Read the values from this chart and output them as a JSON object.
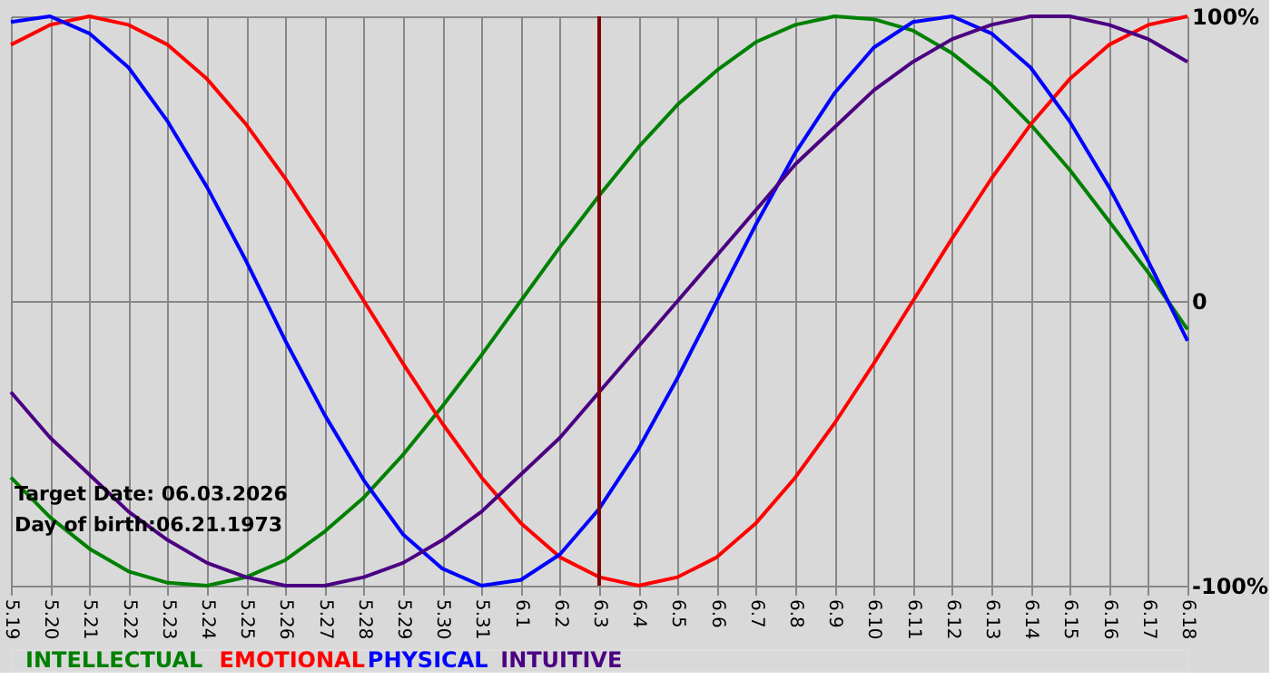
{
  "chart_data": {
    "type": "line",
    "categories": [
      "5.19",
      "5.20",
      "5.21",
      "5.22",
      "5.23",
      "5.24",
      "5.25",
      "5.26",
      "5.27",
      "5.28",
      "5.29",
      "5.30",
      "5.31",
      "6.1",
      "6.2",
      "6.3",
      "6.4",
      "6.5",
      "6.6",
      "6.7",
      "6.8",
      "6.9",
      "6.10",
      "6.11",
      "6.12",
      "6.13",
      "6.14",
      "6.15",
      "6.16",
      "6.17",
      "6.18"
    ],
    "series": [
      {
        "name": "INTELLECTUAL",
        "color": "#008000",
        "values": [
          -62,
          -76,
          -87,
          -95,
          -99,
          -100,
          -97,
          -91,
          -81,
          -69,
          -54,
          -37,
          -19,
          0,
          19,
          37,
          54,
          69,
          81,
          91,
          97,
          100,
          99,
          95,
          87,
          76,
          62,
          46,
          28,
          10,
          -10
        ]
      },
      {
        "name": "EMOTIONAL",
        "color": "#ff0000",
        "values": [
          90,
          97,
          100,
          97,
          90,
          78,
          62,
          43,
          22,
          0,
          -22,
          -43,
          -62,
          -78,
          -90,
          -97,
          -100,
          -97,
          -90,
          -78,
          -62,
          -43,
          -22,
          0,
          22,
          43,
          62,
          78,
          90,
          97,
          100
        ]
      },
      {
        "name": "PHYSICAL",
        "color": "#0000ff",
        "values": [
          98,
          100,
          94,
          82,
          63,
          40,
          14,
          -14,
          -40,
          -63,
          -82,
          -94,
          -100,
          -98,
          -89,
          -73,
          -52,
          -27,
          0,
          27,
          52,
          73,
          89,
          98,
          100,
          94,
          82,
          63,
          40,
          14,
          -14
        ]
      },
      {
        "name": "INTUITIVE",
        "color": "#4b0082",
        "values": [
          -32,
          -48,
          -61,
          -74,
          -84,
          -92,
          -97,
          -100,
          -100,
          -97,
          -92,
          -84,
          -74,
          -61,
          -48,
          -32,
          -16,
          0,
          16,
          32,
          48,
          61,
          74,
          84,
          92,
          97,
          100,
          100,
          97,
          92,
          84
        ]
      }
    ],
    "ylim": [
      -100,
      100
    ],
    "yticks": [
      {
        "value": -100,
        "label": "-100%"
      },
      0,
      {
        "value": 100,
        "label": "100%"
      }
    ],
    "grid": true,
    "legend": "bottom left",
    "line_style": "solid",
    "ref_lines": [
      {
        "axis": "x",
        "value": "6.3",
        "color": "#800000"
      }
    ],
    "annotations": [
      "Target Date: 06.03.2026",
      "Day of birth:06.21.1973"
    ]
  }
}
